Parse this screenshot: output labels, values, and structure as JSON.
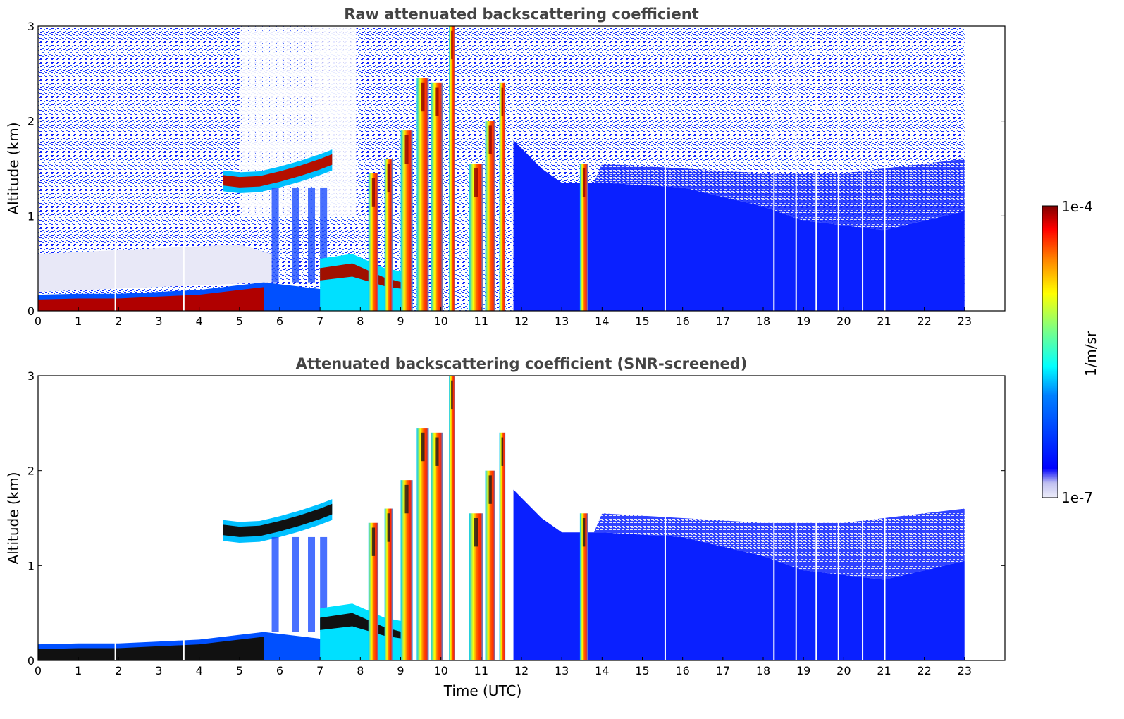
{
  "chart_data": [
    {
      "type": "heatmap",
      "title": "Raw attenuated backscattering coefficient",
      "xlabel": "",
      "ylabel": "Altitude (km)",
      "xlim": [
        0,
        24
      ],
      "ylim": [
        0,
        3
      ],
      "x_ticks": [
        "0",
        "1",
        "2",
        "3",
        "4",
        "5",
        "6",
        "7",
        "8",
        "9",
        "10",
        "11",
        "12",
        "13",
        "14",
        "15",
        "16",
        "17",
        "18",
        "19",
        "20",
        "21",
        "22",
        "23"
      ],
      "y_ticks": [
        "0",
        "1",
        "2",
        "3"
      ],
      "data_end_time": 23,
      "screened": false,
      "features": [
        {
          "label": "boundary layer aerosol top",
          "times": [
            0,
            1,
            2,
            3,
            4,
            5,
            5.6
          ],
          "altitudes": [
            0.17,
            0.18,
            0.18,
            0.2,
            0.22,
            0.27,
            0.3
          ]
        },
        {
          "label": "elevated aerosol layer",
          "times": [
            4.6,
            5.0,
            5.5,
            6.0,
            6.5,
            7.0,
            7.3
          ],
          "altitudes": [
            1.38,
            1.36,
            1.37,
            1.42,
            1.48,
            1.55,
            1.6
          ]
        },
        {
          "label": "convective cloud columns",
          "times": [
            8.3,
            8.9,
            9.3,
            9.6,
            10.3,
            10.9,
            11.4,
            13.5
          ],
          "altitudes": [
            1.3,
            1.5,
            1.8,
            2.2,
            2.8,
            1.5,
            2.3,
            1.1
          ]
        },
        {
          "label": "afternoon boundary layer top",
          "times": [
            12,
            14,
            16,
            18,
            19.5,
            21,
            23
          ],
          "altitudes": [
            1.8,
            1.35,
            1.3,
            1.1,
            0.9,
            0.85,
            1.05
          ]
        }
      ]
    },
    {
      "type": "heatmap",
      "title": "Attenuated backscattering coefficient (SNR-screened)",
      "xlabel": "Time (UTC)",
      "ylabel": "Altitude (km)",
      "xlim": [
        0,
        24
      ],
      "ylim": [
        0,
        3
      ],
      "x_ticks": [
        "0",
        "1",
        "2",
        "3",
        "4",
        "5",
        "6",
        "7",
        "8",
        "9",
        "10",
        "11",
        "12",
        "13",
        "14",
        "15",
        "16",
        "17",
        "18",
        "19",
        "20",
        "21",
        "22",
        "23"
      ],
      "y_ticks": [
        "0",
        "1",
        "2",
        "3"
      ],
      "data_end_time": 23,
      "screened": true
    }
  ],
  "colorbar": {
    "label": "1/m/sr",
    "max_label": "1e-4",
    "min_label": "1e-7",
    "scale": "log",
    "colormap": "jet",
    "colors": [
      "#e6e6f5",
      "#0000ff",
      "#00a0ff",
      "#00ffff",
      "#7fff7f",
      "#ffff00",
      "#ff8000",
      "#ff0000",
      "#800000"
    ]
  }
}
